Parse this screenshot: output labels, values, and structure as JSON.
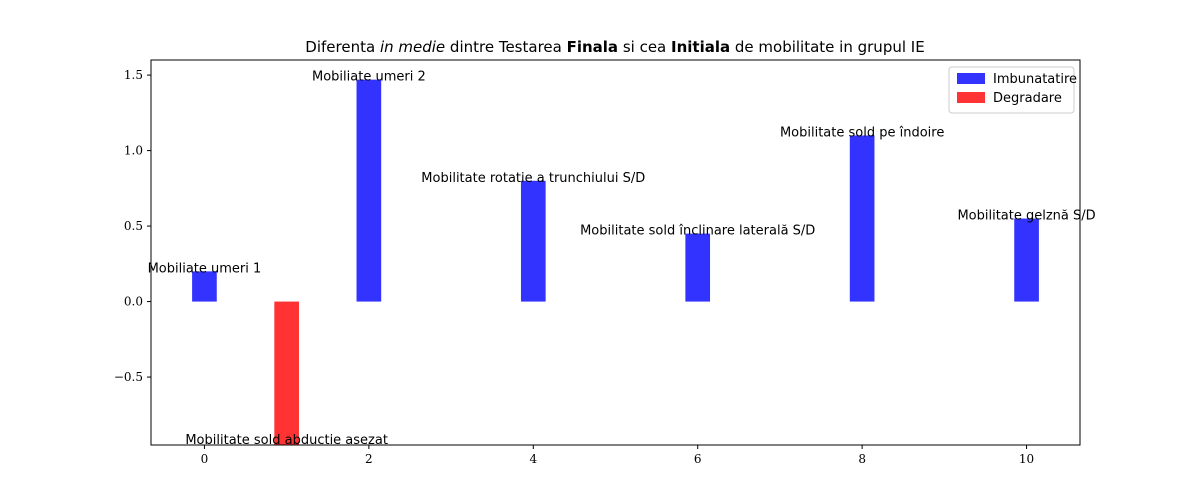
{
  "chart_data": {
    "type": "bar",
    "title_parts": [
      {
        "text": "Diferenta ",
        "style": "normal"
      },
      {
        "text": "in medie",
        "style": "italic"
      },
      {
        "text": " dintre Testarea ",
        "style": "normal"
      },
      {
        "text": "Finala",
        "style": "bold"
      },
      {
        "text": " si cea ",
        "style": "normal"
      },
      {
        "text": "Initiala",
        "style": "bold"
      },
      {
        "text": " de mobilitate in grupul IE",
        "style": "normal"
      }
    ],
    "xlabel": "",
    "ylabel": "",
    "xlim": [
      -0.65,
      10.65
    ],
    "ylim": [
      -0.95,
      1.6
    ],
    "xticks": [
      0,
      2,
      4,
      6,
      8,
      10
    ],
    "yticks": [
      -0.5,
      0.0,
      0.5,
      1.0,
      1.5
    ],
    "ytick_labels": [
      "−0.5",
      "0.0",
      "0.5",
      "1.0",
      "1.5"
    ],
    "bars": [
      {
        "x": 0,
        "value": 0.2,
        "label": "Mobiliate umeri 1",
        "series": "Imbunatatire"
      },
      {
        "x": 1,
        "value": -1.0,
        "label": "Mobilitate sold abductie asezat",
        "series": "Degradare"
      },
      {
        "x": 2,
        "value": 1.47,
        "label": "Mobiliate umeri 2",
        "series": "Imbunatatire"
      },
      {
        "x": 4,
        "value": 0.8,
        "label": "Mobilitate rotatie a trunchiului S/D",
        "series": "Imbunatatire"
      },
      {
        "x": 6,
        "value": 0.45,
        "label": "Mobilitate sold înclinare laterală S/D",
        "series": "Imbunatatire"
      },
      {
        "x": 8,
        "value": 1.1,
        "label": "Mobilitate sold pe îndoire",
        "series": "Imbunatatire"
      },
      {
        "x": 10,
        "value": 0.55,
        "label": "Mobilitate gelznă S/D",
        "series": "Imbunatatire"
      }
    ],
    "series": [
      {
        "name": "Imbunatatire",
        "color": "#3333ff"
      },
      {
        "name": "Degradare",
        "color": "#ff3333"
      }
    ],
    "legend_position": "top-right",
    "grid": false
  }
}
